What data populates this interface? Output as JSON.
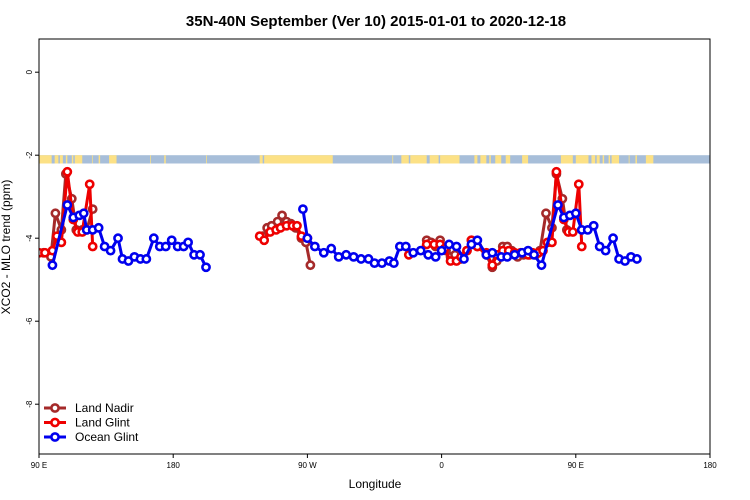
{
  "chart_data": {
    "type": "line",
    "title": "35N-40N September (Ver 10)   2015-01-01 to 2020-12-18",
    "xlabel": "Longitude",
    "ylabel": "XCO2 - MLO trend (ppm)",
    "xlim": [
      90,
      450
    ],
    "ylim": [
      -9.2,
      0.8
    ],
    "x_ticks": [
      {
        "value": 90,
        "label": "90 E"
      },
      {
        "value": 180,
        "label": "180"
      },
      {
        "value": 270,
        "label": "90 W"
      },
      {
        "value": 360,
        "label": "0"
      },
      {
        "value": 450,
        "label": "90 E"
      },
      {
        "value": 540,
        "label": "180"
      }
    ],
    "y_ticks": [
      {
        "value": 0,
        "label": "0"
      },
      {
        "value": -2,
        "label": "-2"
      },
      {
        "value": -4,
        "label": "-4"
      },
      {
        "value": -6,
        "label": "-6"
      },
      {
        "value": -8,
        "label": "-8"
      }
    ],
    "grid": false,
    "legend_position": "bottom-left",
    "map_strip": {
      "y_top": -2.0,
      "y_bottom": -2.2,
      "ocean_color": "#a7bed9",
      "land_color": "#fce186",
      "land_ranges": [
        [
          90,
          98.5
        ],
        [
          100.5,
          103
        ],
        [
          104,
          106
        ],
        [
          108,
          109
        ],
        [
          112,
          113
        ],
        [
          114,
          119
        ],
        [
          125.5,
          126
        ],
        [
          130,
          131
        ],
        [
          137,
          142
        ],
        [
          164.5,
          165
        ],
        [
          174,
          175
        ],
        [
          202,
          202.5
        ],
        [
          238,
          240
        ],
        [
          241,
          287
        ],
        [
          327,
          327.5
        ],
        [
          333,
          338
        ],
        [
          339,
          350
        ],
        [
          352,
          358
        ],
        [
          359,
          372
        ],
        [
          382,
          384
        ],
        [
          386,
          390
        ],
        [
          392,
          393
        ],
        [
          396,
          400
        ],
        [
          403,
          406
        ],
        [
          414,
          418
        ],
        [
          440,
          448
        ],
        [
          450,
          458.5
        ],
        [
          460.5,
          463
        ],
        [
          464,
          466
        ],
        [
          468,
          469
        ],
        [
          472,
          473
        ],
        [
          474,
          479
        ],
        [
          485.5,
          486
        ],
        [
          490,
          491
        ],
        [
          497,
          502
        ]
      ]
    },
    "series": [
      {
        "name": "Land Nadir",
        "color": "#a52a2a",
        "segments": [
          [
            [
              93,
              -4.35
            ],
            [
              98,
              -4.45
            ],
            [
              101,
              -3.4
            ],
            [
              105,
              -3.8
            ],
            [
              108,
              -2.45
            ],
            [
              112,
              -3.05
            ],
            [
              115,
              -3.8
            ],
            [
              119,
              -3.8
            ],
            [
              122,
              -3.8
            ],
            [
              126,
              -3.3
            ]
          ],
          [
            [
              240,
              -3.95
            ],
            [
              243,
              -3.75
            ],
            [
              246,
              -3.7
            ],
            [
              250,
              -3.6
            ],
            [
              253,
              -3.45
            ],
            [
              256,
              -3.6
            ],
            [
              259,
              -3.65
            ],
            [
              262,
              -3.75
            ],
            [
              266,
              -4.0
            ],
            [
              269,
              -4.1
            ],
            [
              272,
              -4.65
            ]
          ],
          [
            [
              350,
              -4.05
            ],
            [
              353,
              -4.1
            ],
            [
              356,
              -4.2
            ],
            [
              359,
              -4.05
            ],
            [
              363,
              -4.3
            ],
            [
              366,
              -4.45
            ],
            [
              369,
              -4.4
            ],
            [
              373,
              -4.5
            ],
            [
              377,
              -4.3
            ],
            [
              380,
              -4.05
            ],
            [
              384,
              -4.2
            ],
            [
              390,
              -4.4
            ],
            [
              394,
              -4.7
            ],
            [
              397,
              -4.55
            ],
            [
              401,
              -4.2
            ],
            [
              404,
              -4.2
            ],
            [
              407,
              -4.3
            ],
            [
              411,
              -4.45
            ],
            [
              415,
              -4.4
            ],
            [
              419,
              -4.4
            ],
            [
              423,
              -4.4
            ],
            [
              426,
              -4.3
            ],
            [
              430,
              -3.4
            ],
            [
              434,
              -3.75
            ],
            [
              437,
              -2.45
            ],
            [
              441,
              -3.05
            ],
            [
              444,
              -3.8
            ]
          ]
        ]
      },
      {
        "name": "Land Glint",
        "color": "#ee0000",
        "segments": [
          [
            [
              90,
              -4.35
            ],
            [
              94,
              -4.35
            ],
            [
              99,
              -4.3
            ],
            [
              102,
              -3.95
            ],
            [
              105,
              -4.1
            ],
            [
              109,
              -2.4
            ],
            [
              113,
              -3.55
            ],
            [
              116,
              -3.85
            ],
            [
              119,
              -3.85
            ],
            [
              124,
              -2.7
            ],
            [
              126,
              -4.2
            ]
          ],
          [
            [
              238,
              -3.95
            ],
            [
              241,
              -4.05
            ],
            [
              245,
              -3.85
            ],
            [
              249,
              -3.8
            ],
            [
              252,
              -3.75
            ],
            [
              256,
              -3.7
            ],
            [
              260,
              -3.7
            ],
            [
              263,
              -3.7
            ],
            [
              266,
              -3.95
            ],
            [
              270,
              -4.0
            ]
          ],
          [
            [
              338,
              -4.4
            ],
            [
              350,
              -4.15
            ],
            [
              355,
              -4.15
            ],
            [
              359,
              -4.15
            ],
            [
              362,
              -4.25
            ],
            [
              366,
              -4.55
            ],
            [
              370,
              -4.55
            ],
            [
              373,
              -4.45
            ],
            [
              377,
              -4.3
            ],
            [
              380,
              -4.05
            ],
            [
              384,
              -4.2
            ],
            [
              390,
              -4.35
            ],
            [
              394,
              -4.65
            ],
            [
              397,
              -4.4
            ],
            [
              401,
              -4.3
            ],
            [
              405,
              -4.3
            ],
            [
              409,
              -4.35
            ],
            [
              413,
              -4.35
            ],
            [
              418,
              -4.4
            ],
            [
              421,
              -4.35
            ],
            [
              425,
              -4.35
            ],
            [
              428,
              -4.3
            ],
            [
              431,
              -4.1
            ],
            [
              434,
              -4.1
            ],
            [
              437,
              -2.4
            ],
            [
              442,
              -3.55
            ],
            [
              445,
              -3.85
            ],
            [
              448,
              -3.85
            ],
            [
              452,
              -2.7
            ],
            [
              454,
              -4.2
            ]
          ]
        ]
      },
      {
        "name": "Ocean Glint",
        "color": "#0000ee",
        "segments": [
          [
            [
              99,
              -4.65
            ],
            [
              109,
              -3.2
            ],
            [
              113,
              -3.5
            ],
            [
              117,
              -3.45
            ],
            [
              120,
              -3.4
            ],
            [
              122,
              -3.8
            ],
            [
              126,
              -3.8
            ],
            [
              130,
              -3.75
            ],
            [
              134,
              -4.2
            ],
            [
              138,
              -4.3
            ],
            [
              143,
              -4.0
            ],
            [
              146,
              -4.5
            ],
            [
              150,
              -4.55
            ],
            [
              154,
              -4.45
            ],
            [
              158,
              -4.5
            ],
            [
              162,
              -4.5
            ],
            [
              167,
              -4.0
            ],
            [
              171,
              -4.2
            ],
            [
              175,
              -4.2
            ],
            [
              179,
              -4.05
            ],
            [
              183,
              -4.2
            ],
            [
              187,
              -4.2
            ],
            [
              190,
              -4.1
            ],
            [
              194,
              -4.4
            ],
            [
              198,
              -4.4
            ],
            [
              202,
              -4.7
            ]
          ],
          [
            [
              267,
              -3.3
            ],
            [
              270,
              -4.0
            ],
            [
              275,
              -4.2
            ],
            [
              281,
              -4.35
            ],
            [
              286,
              -4.25
            ],
            [
              291,
              -4.45
            ],
            [
              296,
              -4.4
            ],
            [
              301,
              -4.45
            ],
            [
              306,
              -4.5
            ],
            [
              311,
              -4.5
            ],
            [
              315,
              -4.6
            ],
            [
              320,
              -4.6
            ],
            [
              325,
              -4.55
            ],
            [
              328,
              -4.6
            ],
            [
              332,
              -4.2
            ],
            [
              336,
              -4.2
            ],
            [
              341,
              -4.35
            ],
            [
              346,
              -4.3
            ],
            [
              351,
              -4.4
            ],
            [
              356,
              -4.45
            ],
            [
              360,
              -4.3
            ],
            [
              365,
              -4.15
            ],
            [
              370,
              -4.2
            ],
            [
              375,
              -4.5
            ],
            [
              380,
              -4.15
            ],
            [
              384,
              -4.05
            ],
            [
              390,
              -4.4
            ],
            [
              394,
              -4.35
            ],
            [
              400,
              -4.45
            ],
            [
              404,
              -4.45
            ],
            [
              409,
              -4.4
            ],
            [
              414,
              -4.35
            ],
            [
              418,
              -4.3
            ],
            [
              422,
              -4.4
            ],
            [
              427,
              -4.65
            ],
            [
              438,
              -3.2
            ],
            [
              442,
              -3.5
            ],
            [
              446,
              -3.45
            ],
            [
              450,
              -3.4
            ],
            [
              454,
              -3.8
            ],
            [
              458,
              -3.8
            ],
            [
              462,
              -3.7
            ],
            [
              466,
              -4.2
            ],
            [
              470,
              -4.3
            ],
            [
              475,
              -4.0
            ],
            [
              479,
              -4.5
            ],
            [
              483,
              -4.55
            ],
            [
              487,
              -4.45
            ],
            [
              491,
              -4.5
            ]
          ]
        ]
      }
    ]
  }
}
